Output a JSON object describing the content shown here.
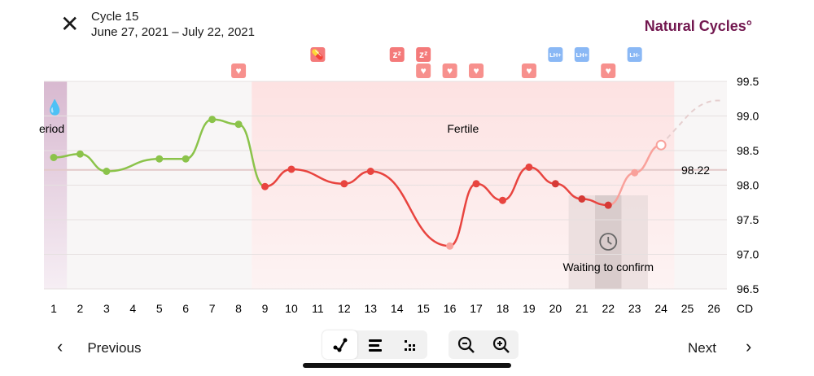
{
  "header": {
    "title": "Cycle 15",
    "dates": "June 27, 2021 – July 22, 2021",
    "logo": "Natural Cycles°",
    "close_icon": "close-icon"
  },
  "chart_data": {
    "type": "line",
    "xlabel": "CD",
    "x_ticks": [
      1,
      2,
      3,
      4,
      5,
      6,
      7,
      8,
      9,
      10,
      11,
      12,
      13,
      14,
      15,
      16,
      17,
      18,
      19,
      20,
      21,
      22,
      23,
      24,
      25,
      26
    ],
    "y_ticks": [
      "99.5",
      "99.0",
      "98.5",
      "98.0",
      "97.5",
      "97.0",
      "96.5"
    ],
    "ylim": [
      96.5,
      99.5
    ],
    "points": [
      [
        1,
        98.4
      ],
      [
        2,
        98.45
      ],
      [
        3,
        98.2
      ],
      [
        5,
        98.38
      ],
      [
        6,
        98.38
      ],
      [
        7,
        98.95
      ],
      [
        8,
        98.88
      ],
      [
        9,
        97.98
      ],
      [
        10,
        98.23
      ],
      [
        12,
        98.02
      ],
      [
        13,
        98.2
      ],
      [
        16,
        97.12
      ],
      [
        17,
        98.02
      ],
      [
        18,
        97.78
      ],
      [
        19,
        98.26
      ],
      [
        20,
        98.02
      ],
      [
        21,
        97.8
      ],
      [
        22,
        97.71
      ],
      [
        23,
        98.18
      ],
      [
        24,
        98.58
      ]
    ],
    "prediction": [
      [
        24,
        98.58
      ],
      [
        25,
        99.0
      ],
      [
        26,
        99.22
      ]
    ],
    "coverline": 98.22,
    "coverline_label": "98.22",
    "period_label": "eriod",
    "fertile_label": "Fertile",
    "waiting_label": "Waiting to confirm",
    "period_range": [
      0.6,
      1.5
    ],
    "fertile_range": [
      8.5,
      24.5
    ],
    "waiting_range": [
      20.5,
      23.5
    ],
    "markers": [
      {
        "day": 8,
        "row": 2,
        "icon": "heart"
      },
      {
        "day": 11,
        "row": 1,
        "icon": "pill"
      },
      {
        "day": 14,
        "row": 1,
        "icon": "sleep"
      },
      {
        "day": 15,
        "row": 1,
        "icon": "sleep"
      },
      {
        "day": 15,
        "row": 2,
        "icon": "heart"
      },
      {
        "day": 16,
        "row": 2,
        "icon": "heart"
      },
      {
        "day": 17,
        "row": 2,
        "icon": "heart"
      },
      {
        "day": 19,
        "row": 2,
        "icon": "heart"
      },
      {
        "day": 20,
        "row": 1,
        "icon": "lh",
        "text": "LH+"
      },
      {
        "day": 21,
        "row": 1,
        "icon": "lh",
        "text": "LH+"
      },
      {
        "day": 22,
        "row": 2,
        "icon": "heart"
      },
      {
        "day": 23,
        "row": 1,
        "icon": "lh",
        "text": "LH-"
      }
    ],
    "colors": {
      "green": "#8bc34a",
      "red": "#e8443f",
      "pink": "#f9a19b",
      "fertile": "#fde2e2",
      "period": "#d8b9d0",
      "lh": "#8ab8f5",
      "marker": "#f47a7a"
    }
  },
  "footer": {
    "previous": "Previous",
    "next": "Next"
  }
}
